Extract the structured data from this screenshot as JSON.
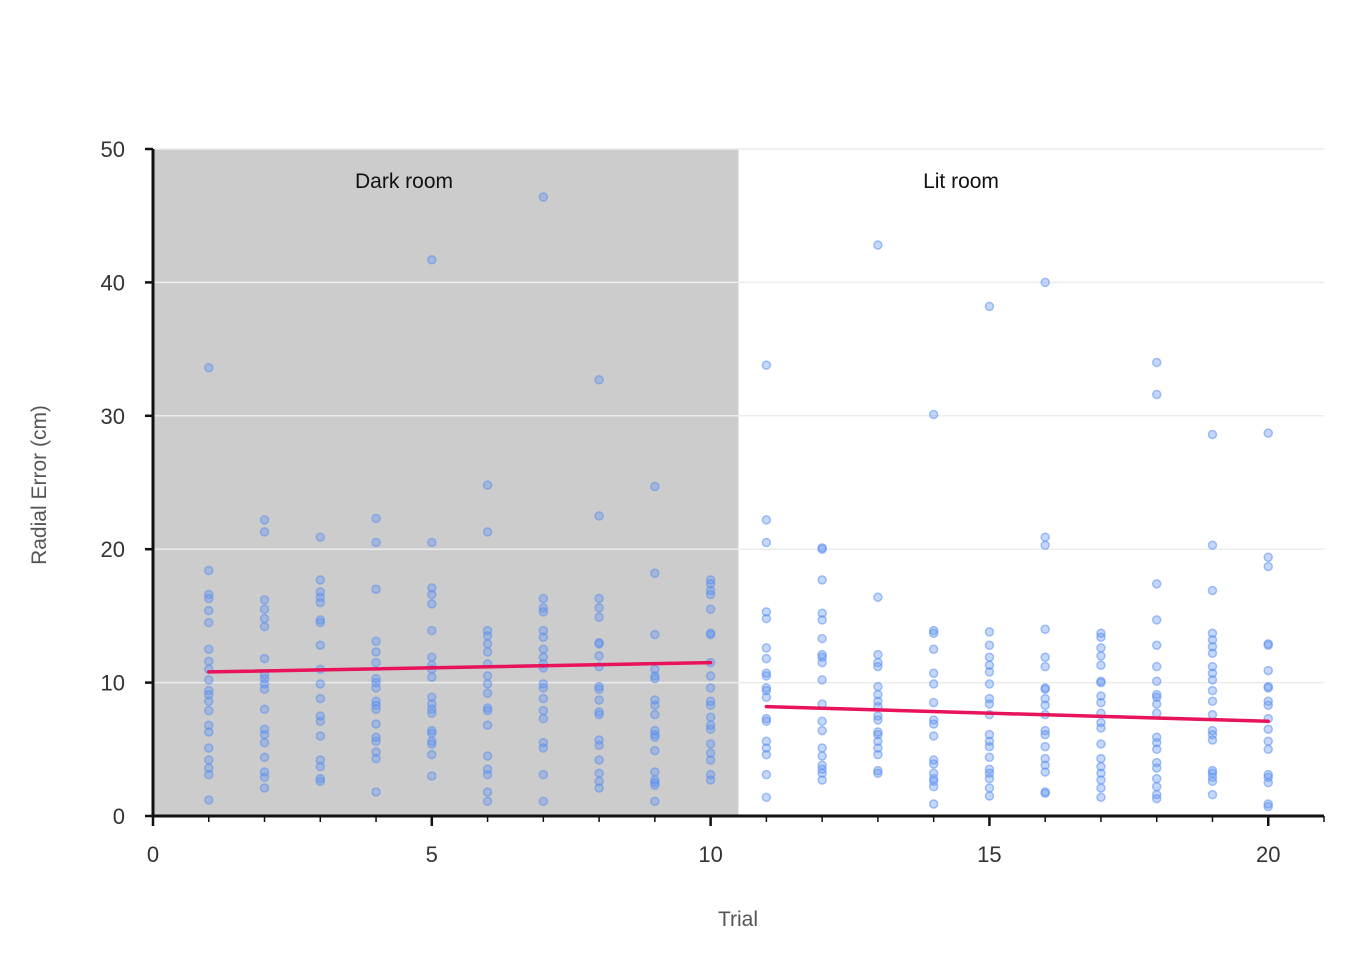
{
  "chart_data": {
    "type": "scatter",
    "xlabel": "Trial",
    "ylabel": "Radial Error (cm)",
    "xlim": [
      0,
      21
    ],
    "ylim": [
      0,
      50
    ],
    "xticks": [
      0,
      5,
      10,
      15,
      20
    ],
    "yticks": [
      0,
      10,
      20,
      30,
      40,
      50
    ],
    "grid": "horizontal",
    "regions": [
      {
        "label": "Dark room",
        "x_start": 0,
        "x_end": 10.5,
        "color": "#cccccc"
      },
      {
        "label": "Lit room",
        "x_start": 10.5,
        "x_end": 21,
        "color": "#ffffff"
      }
    ],
    "point_color": "#5b8ff0",
    "trend_color": "#e8135a",
    "trend_lines": [
      {
        "x": [
          1,
          10
        ],
        "y": [
          10.8,
          11.5
        ]
      },
      {
        "x": [
          11,
          20
        ],
        "y": [
          8.2,
          7.1
        ]
      }
    ],
    "points": [
      {
        "x": 1,
        "y": [
          1.2,
          3.1,
          3.6,
          4.2,
          5.1,
          6.3,
          6.8,
          7.9,
          8.6,
          9.1,
          9.4,
          10.2,
          11.0,
          11.6,
          12.5,
          14.5,
          15.4,
          16.3,
          16.6,
          18.4,
          33.6
        ]
      },
      {
        "x": 2,
        "y": [
          2.1,
          2.9,
          3.3,
          4.4,
          5.5,
          6.1,
          6.5,
          8.0,
          9.5,
          9.9,
          10.3,
          10.6,
          11.8,
          14.2,
          14.8,
          15.5,
          16.2,
          21.3,
          22.2
        ]
      },
      {
        "x": 3,
        "y": [
          2.6,
          2.8,
          3.7,
          4.2,
          6.0,
          7.1,
          7.5,
          8.8,
          9.9,
          11.0,
          12.8,
          14.5,
          14.7,
          16.0,
          16.4,
          16.8,
          17.7,
          20.9
        ]
      },
      {
        "x": 4,
        "y": [
          1.8,
          4.3,
          4.8,
          5.6,
          5.9,
          6.9,
          8.0,
          8.3,
          8.6,
          9.6,
          10.0,
          10.3,
          11.5,
          12.3,
          13.1,
          17.0,
          20.5,
          22.3
        ]
      },
      {
        "x": 5,
        "y": [
          3.0,
          4.6,
          5.4,
          5.6,
          6.2,
          6.4,
          7.7,
          8.0,
          8.4,
          8.9,
          10.4,
          11.0,
          11.3,
          11.9,
          13.9,
          15.9,
          16.6,
          17.1,
          20.5,
          41.7
        ]
      },
      {
        "x": 6,
        "y": [
          1.1,
          1.8,
          3.1,
          3.5,
          4.5,
          6.8,
          7.9,
          8.1,
          9.2,
          9.9,
          10.5,
          11.4,
          12.3,
          12.9,
          13.5,
          13.9,
          21.3,
          24.8
        ]
      },
      {
        "x": 7,
        "y": [
          1.1,
          3.1,
          5.1,
          5.5,
          7.3,
          7.9,
          8.8,
          9.6,
          9.9,
          11.1,
          11.4,
          11.9,
          12.5,
          13.4,
          13.9,
          15.3,
          15.6,
          16.3,
          46.4
        ]
      },
      {
        "x": 8,
        "y": [
          2.1,
          2.6,
          3.2,
          4.2,
          5.3,
          5.7,
          7.6,
          7.8,
          8.7,
          9.5,
          9.7,
          11.2,
          12.0,
          12.9,
          13.0,
          14.9,
          15.6,
          16.3,
          22.5,
          32.7
        ]
      },
      {
        "x": 9,
        "y": [
          1.1,
          2.3,
          2.5,
          2.7,
          3.3,
          4.9,
          5.9,
          6.1,
          6.4,
          7.6,
          8.3,
          8.7,
          10.3,
          10.5,
          11.0,
          13.6,
          18.2,
          24.7
        ]
      },
      {
        "x": 10,
        "y": [
          2.7,
          3.1,
          4.2,
          4.7,
          5.4,
          6.5,
          6.8,
          7.4,
          8.3,
          8.6,
          9.6,
          10.5,
          11.5,
          13.6,
          13.7,
          15.5,
          16.6,
          16.9,
          17.4,
          17.7
        ]
      },
      {
        "x": 11,
        "y": [
          1.4,
          3.1,
          4.6,
          5.1,
          5.6,
          7.1,
          7.3,
          8.9,
          9.4,
          9.6,
          10.5,
          10.7,
          11.8,
          12.6,
          14.8,
          15.3,
          20.5,
          22.2,
          33.8
        ]
      },
      {
        "x": 12,
        "y": [
          2.7,
          3.2,
          3.5,
          3.8,
          4.5,
          5.1,
          6.4,
          7.1,
          8.4,
          10.2,
          11.5,
          11.9,
          12.1,
          13.3,
          14.7,
          15.2,
          17.7,
          20.0,
          20.1
        ]
      },
      {
        "x": 13,
        "y": [
          3.2,
          3.4,
          4.6,
          5.1,
          5.6,
          6.1,
          6.3,
          7.2,
          7.5,
          8.2,
          8.6,
          9.1,
          9.7,
          11.2,
          11.5,
          12.1,
          16.4,
          42.8
        ]
      },
      {
        "x": 14,
        "y": [
          0.9,
          2.2,
          2.6,
          2.8,
          3.2,
          3.9,
          4.2,
          6.0,
          6.9,
          7.2,
          8.5,
          9.9,
          10.7,
          12.5,
          13.7,
          13.9,
          30.1
        ]
      },
      {
        "x": 15,
        "y": [
          1.5,
          2.1,
          2.8,
          3.2,
          3.5,
          4.4,
          5.2,
          5.6,
          6.1,
          7.6,
          8.4,
          8.8,
          9.9,
          10.8,
          11.3,
          11.9,
          12.8,
          13.8,
          38.2
        ]
      },
      {
        "x": 16,
        "y": [
          1.7,
          1.8,
          3.3,
          3.8,
          4.3,
          5.2,
          6.1,
          6.4,
          7.6,
          8.3,
          8.8,
          9.5,
          9.6,
          11.2,
          11.9,
          14.0,
          20.3,
          20.9,
          40.0
        ]
      },
      {
        "x": 17,
        "y": [
          1.4,
          2.1,
          2.7,
          3.2,
          3.7,
          4.3,
          5.4,
          6.6,
          7.0,
          7.7,
          8.5,
          9.0,
          10.0,
          10.1,
          11.3,
          12.0,
          12.6,
          13.4,
          13.7
        ]
      },
      {
        "x": 18,
        "y": [
          1.3,
          1.6,
          2.2,
          2.8,
          3.6,
          4.0,
          5.0,
          5.5,
          5.9,
          7.7,
          8.4,
          8.9,
          9.1,
          10.1,
          11.2,
          12.8,
          14.7,
          17.4,
          31.6,
          34.0
        ]
      },
      {
        "x": 19,
        "y": [
          1.6,
          2.6,
          2.9,
          3.2,
          3.4,
          5.7,
          6.1,
          6.4,
          7.6,
          8.6,
          9.4,
          10.2,
          10.7,
          11.2,
          12.2,
          12.7,
          13.2,
          13.7,
          16.9,
          20.3,
          28.6
        ]
      },
      {
        "x": 20,
        "y": [
          0.7,
          0.9,
          2.5,
          2.9,
          3.1,
          5.0,
          5.6,
          6.5,
          7.3,
          8.3,
          8.6,
          9.6,
          9.7,
          10.9,
          12.8,
          12.9,
          18.7,
          19.4,
          28.7
        ]
      }
    ]
  }
}
